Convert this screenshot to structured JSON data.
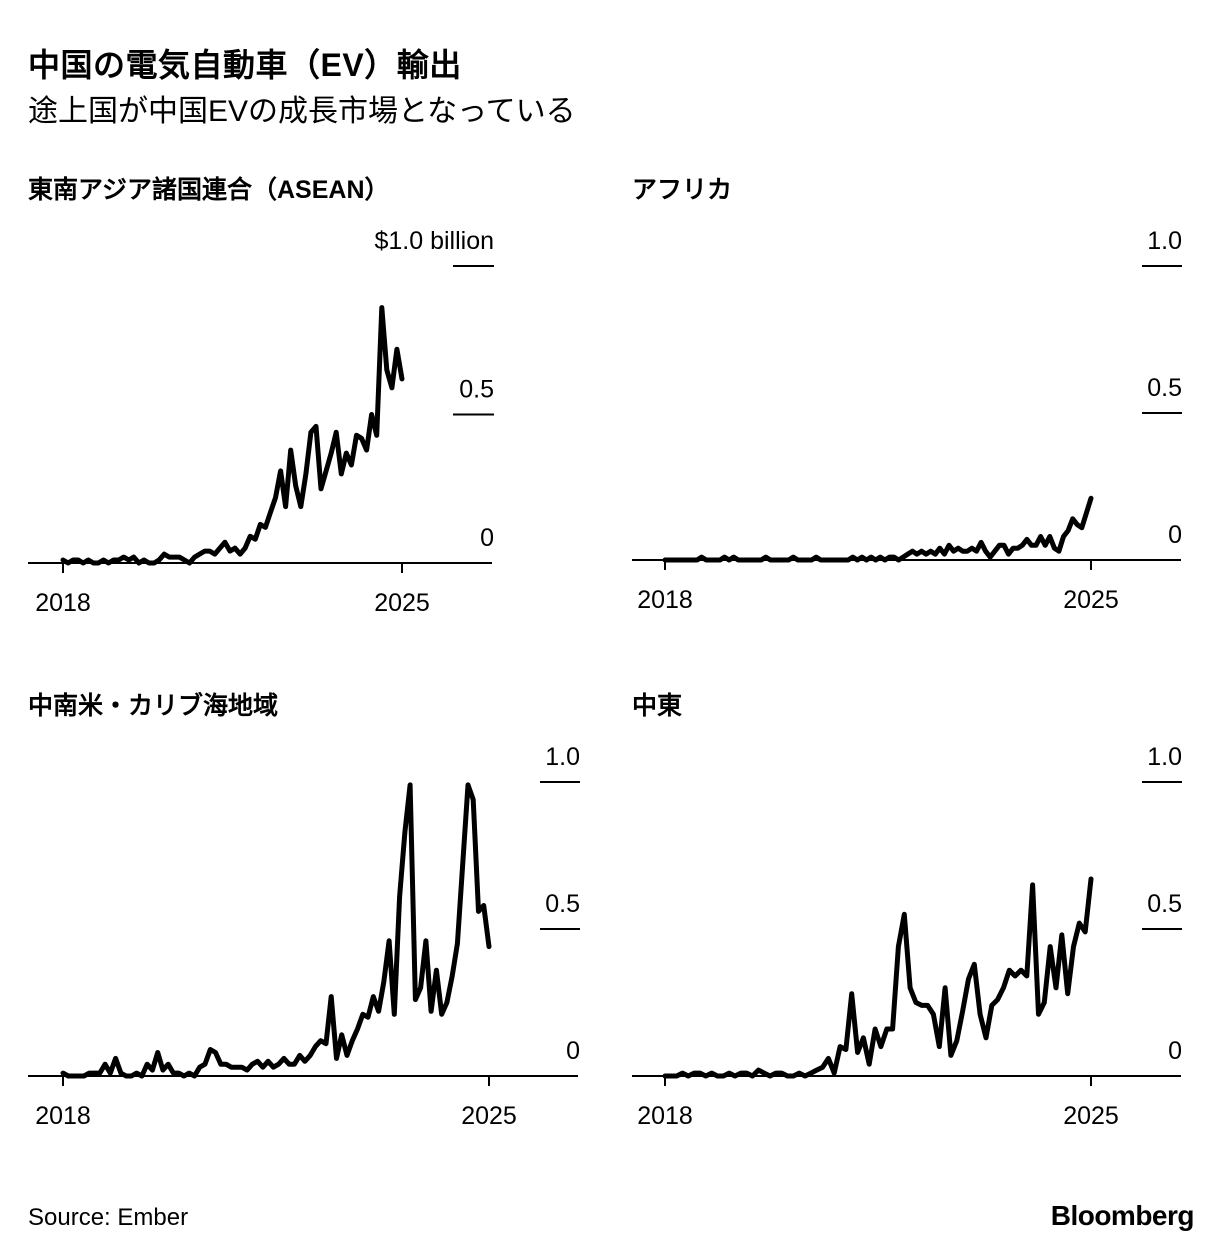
{
  "title": "中国の電気自動車（EV）輸出",
  "subtitle": "途上国が中国EVの成長市場となっている",
  "source": "Source: Ember",
  "brand": "Bloomberg",
  "colors": {
    "line": "#000000",
    "axis": "#000000",
    "background": "#ffffff"
  },
  "chart_data": [
    {
      "type": "line",
      "title": "東南アジア諸国連合（ASEAN）",
      "unit": "billion USD",
      "x_start": 2018,
      "x_end": 2025,
      "xticks": [
        {
          "value": 2018,
          "label": "2018"
        },
        {
          "value": 2025,
          "label": "2025"
        }
      ],
      "ylim": [
        0,
        1.0
      ],
      "yticks": [
        {
          "value": 1.0,
          "label": "$1.0 billion"
        },
        {
          "value": 0.5,
          "label": "0.5"
        },
        {
          "value": 0,
          "label": "0"
        }
      ],
      "last_x": 2025.0,
      "values": [
        0.01,
        0.0,
        0.01,
        0.01,
        0.0,
        0.01,
        0.0,
        0.0,
        0.01,
        0.0,
        0.01,
        0.01,
        0.02,
        0.01,
        0.02,
        0.0,
        0.01,
        0.0,
        0.0,
        0.01,
        0.03,
        0.02,
        0.02,
        0.02,
        0.01,
        0.0,
        0.02,
        0.03,
        0.04,
        0.04,
        0.03,
        0.05,
        0.07,
        0.04,
        0.05,
        0.03,
        0.05,
        0.09,
        0.08,
        0.13,
        0.12,
        0.17,
        0.22,
        0.31,
        0.19,
        0.38,
        0.26,
        0.19,
        0.3,
        0.44,
        0.46,
        0.25,
        0.31,
        0.37,
        0.44,
        0.3,
        0.37,
        0.33,
        0.43,
        0.42,
        0.38,
        0.5,
        0.43,
        0.86,
        0.65,
        0.59,
        0.72,
        0.62
      ]
    },
    {
      "type": "line",
      "title": "アフリカ",
      "unit": "billion USD",
      "x_start": 2018,
      "x_end": 2025,
      "xticks": [
        {
          "value": 2018,
          "label": "2018"
        },
        {
          "value": 2025,
          "label": "2025"
        }
      ],
      "ylim": [
        0,
        1.0
      ],
      "yticks": [
        {
          "value": 1.0,
          "label": "1.0"
        },
        {
          "value": 0.5,
          "label": "0.5"
        },
        {
          "value": 0,
          "label": "0"
        }
      ],
      "last_x": 2025.0,
      "values": [
        0.0,
        0.0,
        0.0,
        0.0,
        0.0,
        0.0,
        0.0,
        0.0,
        0.01,
        0.0,
        0.0,
        0.0,
        0.0,
        0.01,
        0.0,
        0.01,
        0.0,
        0.0,
        0.0,
        0.0,
        0.0,
        0.0,
        0.01,
        0.0,
        0.0,
        0.0,
        0.0,
        0.0,
        0.01,
        0.0,
        0.0,
        0.0,
        0.0,
        0.01,
        0.0,
        0.0,
        0.0,
        0.0,
        0.0,
        0.0,
        0.0,
        0.01,
        0.0,
        0.01,
        0.0,
        0.01,
        0.0,
        0.01,
        0.0,
        0.01,
        0.01,
        0.0,
        0.01,
        0.02,
        0.03,
        0.02,
        0.03,
        0.02,
        0.03,
        0.02,
        0.04,
        0.02,
        0.05,
        0.03,
        0.04,
        0.03,
        0.03,
        0.04,
        0.03,
        0.06,
        0.03,
        0.01,
        0.03,
        0.05,
        0.05,
        0.02,
        0.04,
        0.04,
        0.05,
        0.07,
        0.05,
        0.05,
        0.08,
        0.05,
        0.08,
        0.04,
        0.03,
        0.08,
        0.1,
        0.14,
        0.12,
        0.11,
        0.16,
        0.21
      ]
    },
    {
      "type": "line",
      "title": "中南米・カリブ海地域",
      "unit": "billion USD",
      "x_start": 2018,
      "x_end": 2025,
      "xticks": [
        {
          "value": 2018,
          "label": "2018"
        },
        {
          "value": 2025,
          "label": "2025"
        }
      ],
      "ylim": [
        0,
        1.0
      ],
      "yticks": [
        {
          "value": 1.0,
          "label": "1.0"
        },
        {
          "value": 0.5,
          "label": "0.5"
        },
        {
          "value": 0,
          "label": "0"
        }
      ],
      "last_x": 2025.0,
      "values": [
        0.01,
        0.0,
        0.0,
        0.0,
        0.0,
        0.01,
        0.01,
        0.01,
        0.04,
        0.01,
        0.06,
        0.01,
        0.0,
        0.0,
        0.01,
        0.0,
        0.04,
        0.02,
        0.08,
        0.02,
        0.04,
        0.01,
        0.01,
        0.0,
        0.01,
        0.0,
        0.03,
        0.04,
        0.09,
        0.08,
        0.04,
        0.04,
        0.03,
        0.03,
        0.03,
        0.02,
        0.04,
        0.05,
        0.03,
        0.05,
        0.03,
        0.04,
        0.06,
        0.04,
        0.04,
        0.07,
        0.05,
        0.07,
        0.1,
        0.12,
        0.11,
        0.27,
        0.06,
        0.14,
        0.07,
        0.12,
        0.16,
        0.21,
        0.2,
        0.27,
        0.22,
        0.32,
        0.46,
        0.21,
        0.61,
        0.83,
        0.99,
        0.26,
        0.3,
        0.46,
        0.22,
        0.36,
        0.21,
        0.25,
        0.34,
        0.45,
        0.72,
        0.99,
        0.94,
        0.56,
        0.58,
        0.44
      ]
    },
    {
      "type": "line",
      "title": "中東",
      "unit": "billion USD",
      "x_start": 2018,
      "x_end": 2025,
      "xticks": [
        {
          "value": 2018,
          "label": "2018"
        },
        {
          "value": 2025,
          "label": "2025"
        }
      ],
      "ylim": [
        0,
        1.0
      ],
      "yticks": [
        {
          "value": 1.0,
          "label": "1.0"
        },
        {
          "value": 0.5,
          "label": "0.5"
        },
        {
          "value": 0,
          "label": "0"
        }
      ],
      "last_x": 2025.0,
      "values": [
        0.0,
        0.0,
        0.0,
        0.01,
        0.0,
        0.01,
        0.01,
        0.0,
        0.01,
        0.0,
        0.0,
        0.01,
        0.0,
        0.01,
        0.01,
        0.0,
        0.02,
        0.01,
        0.0,
        0.01,
        0.01,
        0.0,
        0.0,
        0.01,
        0.0,
        0.01,
        0.02,
        0.03,
        0.06,
        0.01,
        0.1,
        0.09,
        0.28,
        0.08,
        0.13,
        0.04,
        0.16,
        0.1,
        0.16,
        0.16,
        0.44,
        0.55,
        0.3,
        0.25,
        0.24,
        0.24,
        0.21,
        0.1,
        0.3,
        0.07,
        0.12,
        0.22,
        0.33,
        0.38,
        0.21,
        0.13,
        0.24,
        0.26,
        0.3,
        0.36,
        0.34,
        0.36,
        0.34,
        0.65,
        0.21,
        0.25,
        0.44,
        0.3,
        0.48,
        0.28,
        0.44,
        0.52,
        0.49,
        0.67
      ]
    }
  ]
}
